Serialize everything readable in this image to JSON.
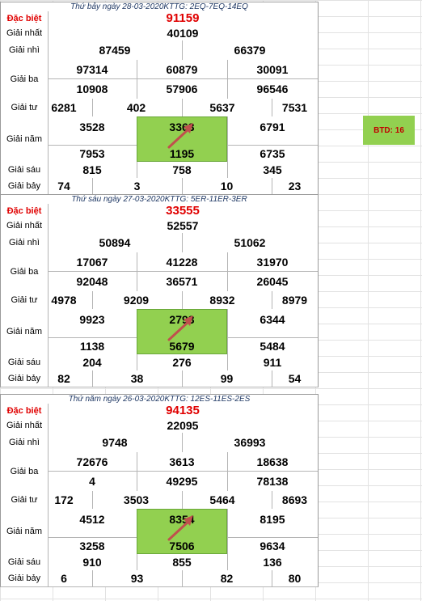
{
  "side_badge": "BTD: 16",
  "labels": {
    "db": "Đặc biệt",
    "g1": "Giải nhất",
    "g2": "Giải nhì",
    "g3": "Giải ba",
    "g4": "Giải tư",
    "g5": "Giải năm",
    "g6": "Giải sáu",
    "g7": "Giải bảy"
  },
  "colors": {
    "highlight": "#92d050",
    "special": "#e00000",
    "arrow": "#c0504d"
  },
  "draws": [
    {
      "header": "Thứ bảy ngày 28-03-2020KTTG: 2EQ-7EQ-14EQ",
      "db": "91159",
      "g1": "40109",
      "g2": [
        "87459",
        "66379"
      ],
      "g3": [
        "97314",
        "60879",
        "30091",
        "10908",
        "57906",
        "96546"
      ],
      "g4": [
        "6281",
        "402",
        "5637",
        "7531"
      ],
      "g5": [
        "3528",
        "3363",
        "6791",
        "7953",
        "1195",
        "6735"
      ],
      "g6": [
        "815",
        "758",
        "345"
      ],
      "g7": [
        "74",
        "3",
        "10",
        "23"
      ]
    },
    {
      "header": "Thứ sáu ngày 27-03-2020KTTG: 5ER-11ER-3ER",
      "db": "33555",
      "g1": "52557",
      "g2": [
        "50894",
        "51062"
      ],
      "g3": [
        "17067",
        "41228",
        "31970",
        "92048",
        "36571",
        "26045"
      ],
      "g4": [
        "4978",
        "9209",
        "8932",
        "8979"
      ],
      "g5": [
        "9923",
        "2793",
        "6344",
        "1138",
        "5679",
        "5484"
      ],
      "g6": [
        "204",
        "276",
        "911"
      ],
      "g7": [
        "82",
        "38",
        "99",
        "54"
      ]
    },
    {
      "header": "Thứ năm ngày 26-03-2020KTTG: 12ES-11ES-2ES",
      "db": "94135",
      "g1": "22095",
      "g2": [
        "9748",
        "36993"
      ],
      "g3": [
        "72676",
        "3613",
        "18638",
        "4",
        "49295",
        "78138"
      ],
      "g4": [
        "172",
        "3503",
        "5464",
        "8693"
      ],
      "g5": [
        "4512",
        "8354",
        "8195",
        "3258",
        "7506",
        "9634"
      ],
      "g6": [
        "910",
        "855",
        "136"
      ],
      "g7": [
        "6",
        "93",
        "82",
        "80"
      ]
    }
  ]
}
